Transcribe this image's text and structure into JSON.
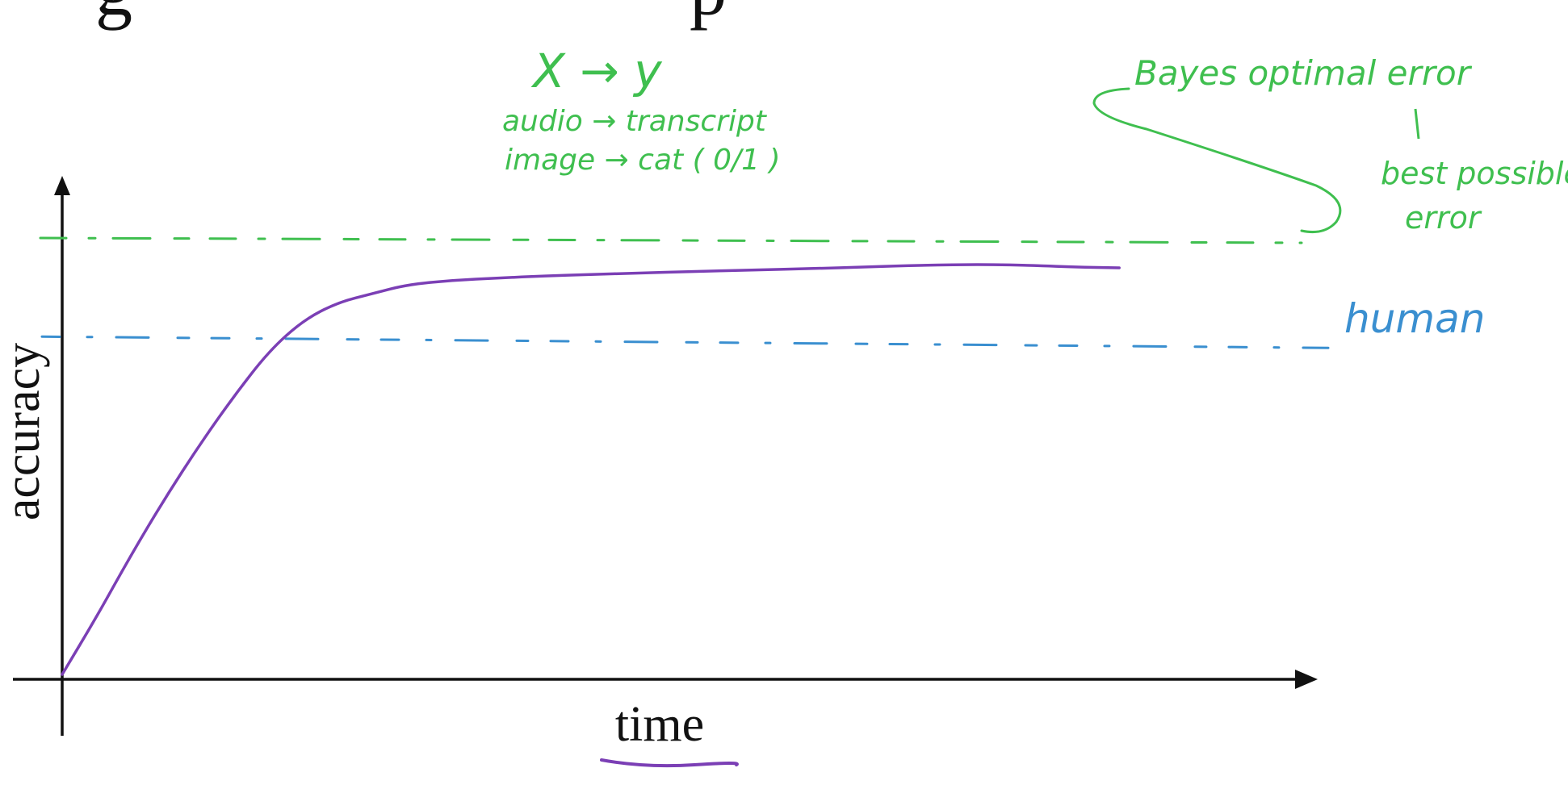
{
  "slide": {
    "title_fragment": "g                              p"
  },
  "chart_data": {
    "type": "line",
    "xlabel": "time",
    "ylabel": "accuracy",
    "xlim": [
      0,
      100
    ],
    "ylim": [
      0,
      100
    ],
    "grid": false,
    "series": [
      {
        "color": "#7b3fb5",
        "x": [
          0,
          3,
          6,
          9,
          12,
          15,
          18,
          21,
          24,
          27,
          30,
          34,
          38,
          42,
          46,
          50,
          55,
          60,
          65,
          70,
          75,
          80,
          85,
          88,
          92
        ],
        "y": [
          0,
          13,
          27,
          40,
          52,
          63,
          73,
          80,
          84,
          86,
          88,
          89,
          89.5,
          90,
          90.3,
          90.6,
          91,
          91.3,
          91.6,
          92,
          92.4,
          92.6,
          92.3,
          92,
          91.8
        ]
      }
    ],
    "reference_lines": [
      {
        "key": "bayes",
        "y": 98,
        "color": "#3fbf4f"
      },
      {
        "key": "human",
        "y": 75,
        "color": "#3a8fd0"
      }
    ],
    "annotations": {
      "mapping_title": "X → y",
      "mapping_audio": "audio → transcript",
      "mapping_image": "image → cat ( 0/1 )",
      "bayes_label": "Bayes optimal error",
      "bayes_sub1": "best possible",
      "bayes_sub2": "error",
      "human_label": "human",
      "colors": {
        "green": "#3fbf4f",
        "blue": "#3a8fd0",
        "purple": "#7b3fb5"
      }
    }
  }
}
